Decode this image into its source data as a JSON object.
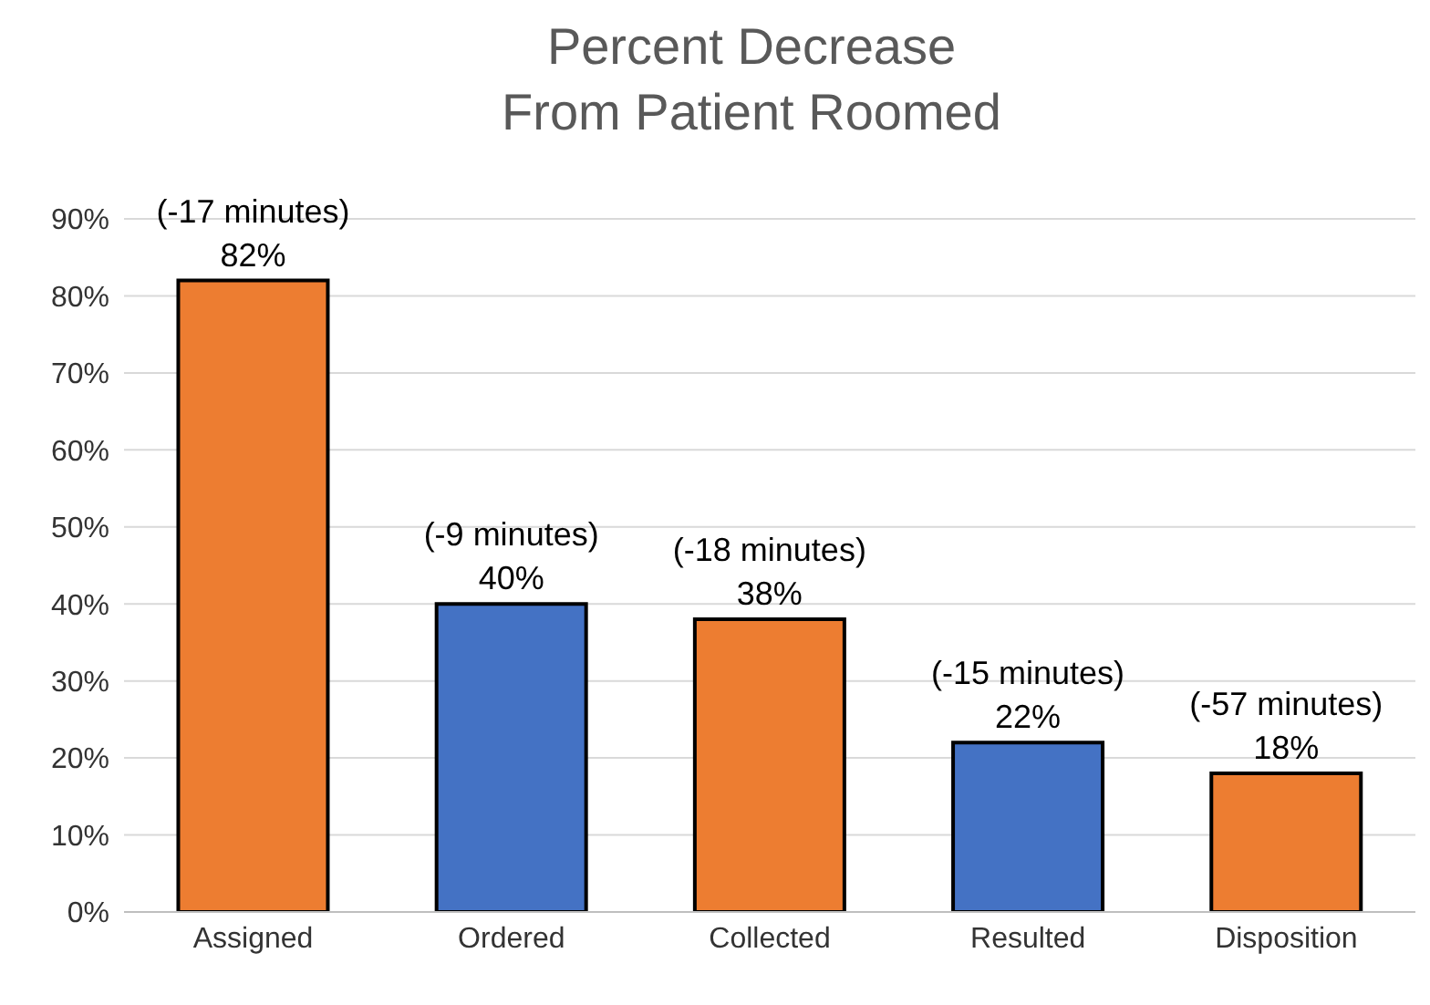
{
  "chart_data": {
    "type": "bar",
    "title": "Percent Decrease\nFrom Patient Roomed",
    "categories": [
      "Assigned",
      "Ordered",
      "Collected",
      "Resulted",
      "Disposition"
    ],
    "values": [
      82,
      40,
      38,
      22,
      18
    ],
    "colors": [
      "#ed7d31",
      "#4472c4",
      "#ed7d31",
      "#4472c4",
      "#ed7d31"
    ],
    "value_labels": [
      "(-17 minutes)\n82%",
      "(-9 minutes)\n40%",
      "(-18 minutes)\n38%",
      "(-15 minutes)\n22%",
      "(-57 minutes)\n18%"
    ],
    "ylim": [
      0,
      90
    ],
    "yticks": [
      {
        "value": 0,
        "label": "0%"
      },
      {
        "value": 10,
        "label": "10%"
      },
      {
        "value": 20,
        "label": "20%"
      },
      {
        "value": 30,
        "label": "30%"
      },
      {
        "value": 40,
        "label": "40%"
      },
      {
        "value": 50,
        "label": "50%"
      },
      {
        "value": 60,
        "label": "60%"
      },
      {
        "value": 70,
        "label": "70%"
      },
      {
        "value": 80,
        "label": "80%"
      },
      {
        "value": 90,
        "label": "90%"
      }
    ],
    "grid": "y",
    "legend": false
  }
}
